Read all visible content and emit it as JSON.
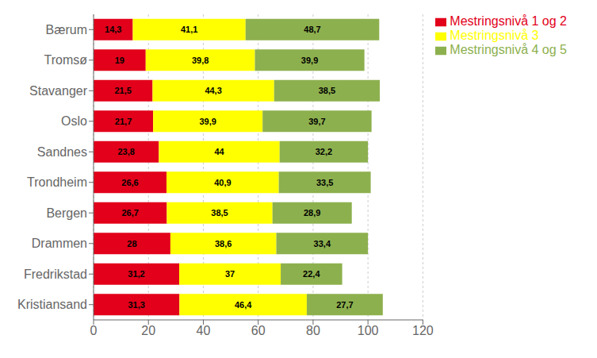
{
  "chart_data": {
    "type": "bar",
    "orientation": "horizontal",
    "stacked": true,
    "data_labels": true,
    "grid": true,
    "legend": "right",
    "categories": [
      "Kristiansand",
      "Fredrikstad",
      "Drammen",
      "Bergen",
      "Trondheim",
      "Sandnes",
      "Oslo",
      "Stavanger",
      "Tromsø",
      "Bærum"
    ],
    "series": [
      {
        "name": "Mestringsnivå 1 og 2",
        "color": "#e2001a",
        "values": [
          31.3,
          31.2,
          28.0,
          26.7,
          26.6,
          23.8,
          21.7,
          21.5,
          19.0,
          14.3
        ],
        "value_labels": [
          "31,3",
          "31,2",
          "28",
          "26,7",
          "26,6",
          "23,8",
          "21,7",
          "21,5",
          "19",
          "14,3"
        ]
      },
      {
        "name": "Mestringsnivå 3",
        "color": "#ffff00",
        "values": [
          46.4,
          37.0,
          38.6,
          38.5,
          40.9,
          44.0,
          39.9,
          44.3,
          39.8,
          41.1
        ],
        "value_labels": [
          "46,4",
          "37",
          "38,6",
          "38,5",
          "40,9",
          "44",
          "39,9",
          "44,3",
          "39,8",
          "41,1"
        ]
      },
      {
        "name": "Mestringsnivå 4 og 5",
        "color": "#8db04e",
        "values": [
          27.7,
          22.4,
          33.4,
          28.9,
          33.5,
          32.2,
          39.7,
          38.5,
          39.9,
          48.7
        ],
        "value_labels": [
          "27,7",
          "22,4",
          "33,4",
          "28,9",
          "33,5",
          "32,2",
          "39,7",
          "38,5",
          "39,9",
          "48,7"
        ]
      }
    ],
    "xlim": [
      0,
      120
    ],
    "xticks": [
      0,
      20,
      40,
      60,
      80,
      100,
      120
    ]
  }
}
